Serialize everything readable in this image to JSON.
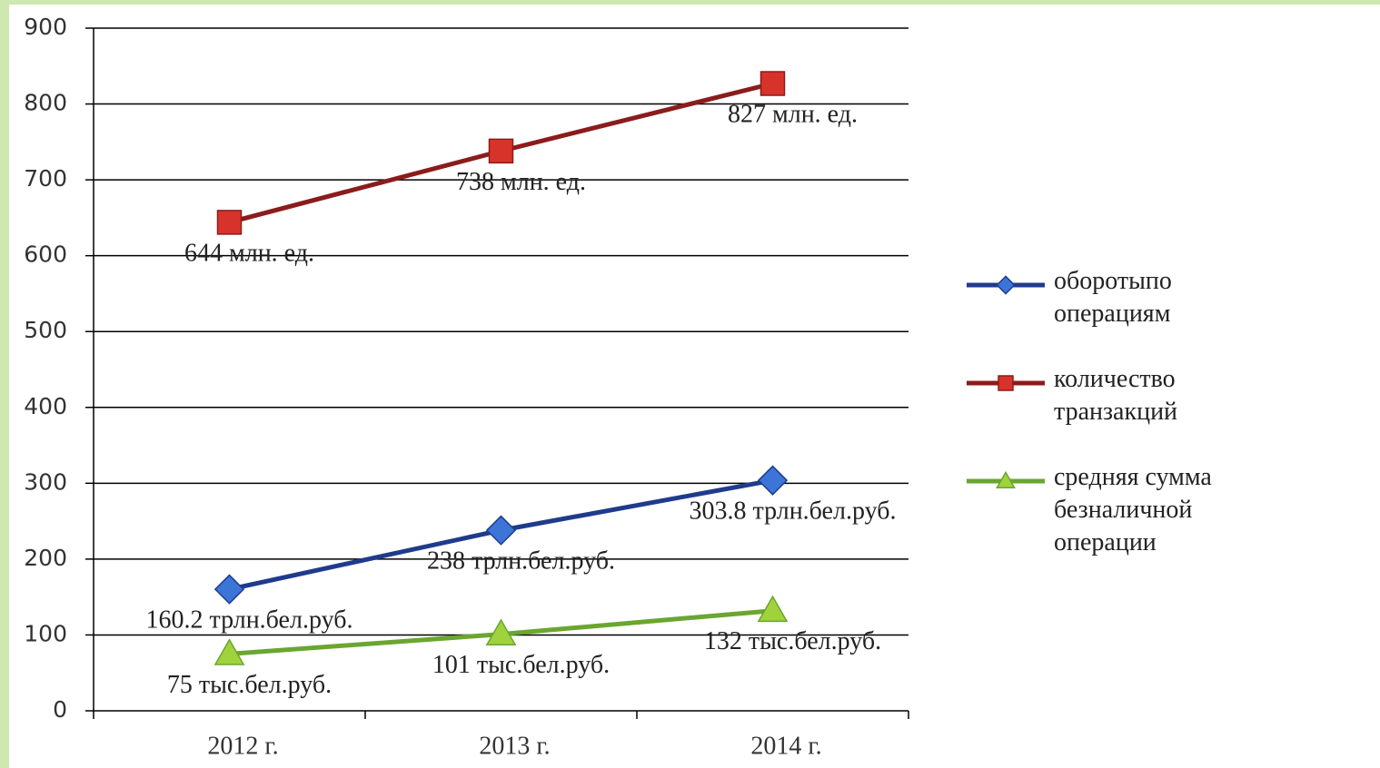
{
  "chart_data": {
    "type": "line",
    "categories": [
      "2012 г.",
      "2013 г.",
      "2014 г."
    ],
    "series": [
      {
        "name": "оборотыпо операциям",
        "color": "#1f3b8c",
        "marker": "diamond",
        "marker_color": "#3c74d8",
        "values": [
          160.2,
          238,
          303.8
        ],
        "value_labels": [
          "160.2 трлн.бел.руб.",
          "238 трлн.бел.руб.",
          "303.8 трлн.бел.руб."
        ]
      },
      {
        "name": "количество транзакций",
        "color": "#8b1c1c",
        "marker": "square",
        "marker_color": "#d8332a",
        "values": [
          644,
          738,
          827
        ],
        "value_labels": [
          "644 млн. ед.",
          "738 млн. ед.",
          "827 млн. ед."
        ]
      },
      {
        "name": "средняя сумма безналичной операции",
        "color": "#6aa630",
        "marker": "triangle",
        "marker_color": "#9fd23c",
        "values": [
          75,
          101,
          132
        ],
        "value_labels": [
          "75 тыс.бел.руб.",
          "101 тыс.бел.руб.",
          "132 тыс.бел.руб."
        ]
      }
    ],
    "ylim": [
      0,
      900
    ],
    "yticks": [
      0,
      100,
      200,
      300,
      400,
      500,
      600,
      700,
      800,
      900
    ],
    "grid": true,
    "legend": "right"
  }
}
